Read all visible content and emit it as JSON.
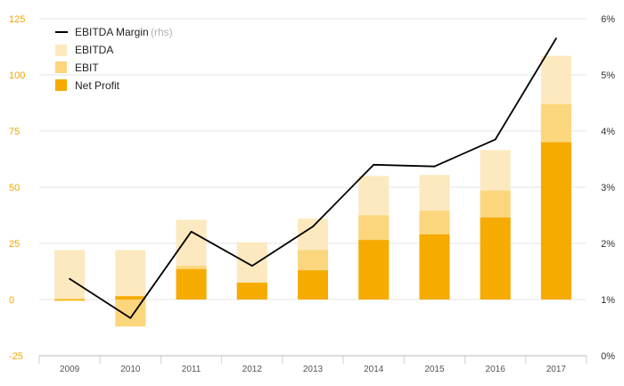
{
  "chart_data": {
    "type": "bar",
    "categories": [
      "2009",
      "2010",
      "2011",
      "2012",
      "2013",
      "2014",
      "2015",
      "2016",
      "2017"
    ],
    "series": [
      {
        "name": "EBITDA",
        "type": "bar",
        "axis": "left",
        "color": "#fde9bf",
        "values": [
          22,
          22,
          35.5,
          25.5,
          36,
          55,
          55.5,
          66.5,
          108.5
        ]
      },
      {
        "name": "EBIT",
        "type": "bar",
        "axis": "left",
        "color": "#fbd67c",
        "values": [
          0.5,
          -12,
          15,
          7.5,
          22,
          37.5,
          39.5,
          48.5,
          87
        ]
      },
      {
        "name": "Net Profit",
        "type": "bar",
        "axis": "left",
        "color": "#f5ab00",
        "values": [
          -0.5,
          1.5,
          13.5,
          7.5,
          13,
          26.5,
          29,
          36.5,
          70
        ]
      },
      {
        "name": "EBITDA Margin",
        "type": "line",
        "axis": "right",
        "color": "#000000",
        "values": [
          1.37,
          0.67,
          2.21,
          1.6,
          2.3,
          3.4,
          3.37,
          3.85,
          5.65
        ]
      }
    ],
    "legend": {
      "entries": [
        "EBITDA Margin",
        "EBITDA",
        "EBIT",
        "Net Profit"
      ],
      "suffix": "(rhs)",
      "placement": "top-left"
    },
    "y_left": {
      "ylim": [
        -25,
        125
      ],
      "ticks": [
        "125",
        "100",
        "75",
        "50",
        "25",
        "0",
        "-25"
      ]
    },
    "y_right": {
      "ylim": [
        0,
        6
      ],
      "ticks": [
        "6%",
        "5%",
        "4%",
        "3%",
        "2%",
        "1%",
        "0%"
      ]
    },
    "x_ticks": [
      "2009",
      "2010",
      "2011",
      "2012",
      "2013",
      "2014",
      "2015",
      "2016",
      "2017"
    ],
    "grid": true
  }
}
